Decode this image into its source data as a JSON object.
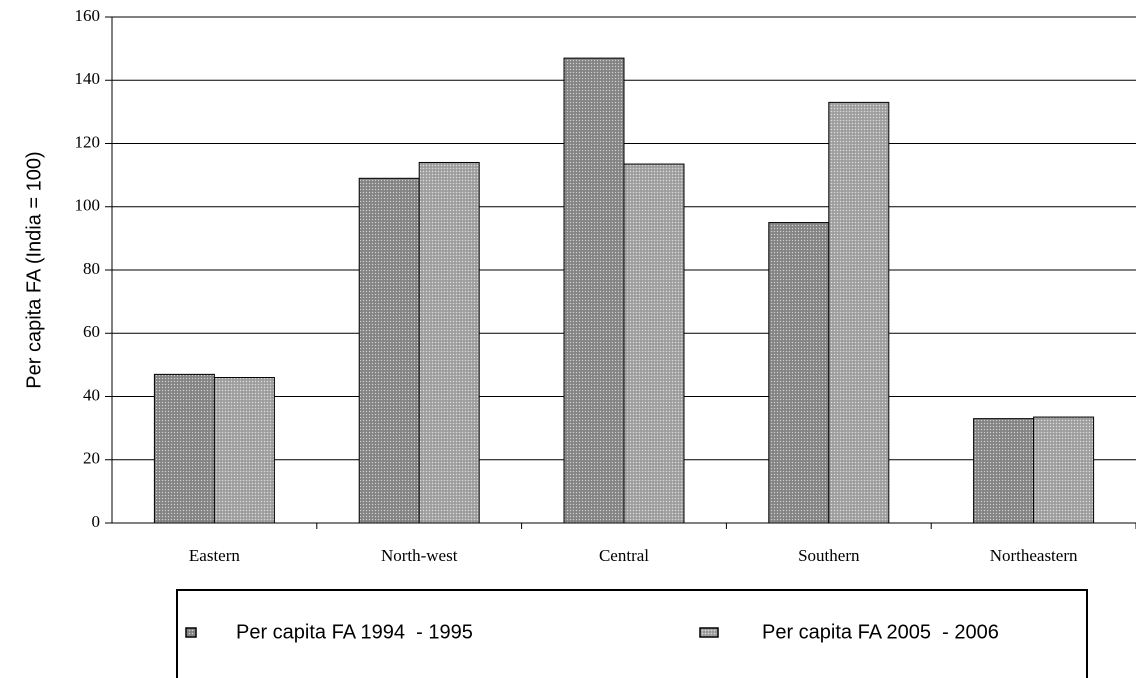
{
  "chart_data": {
    "type": "bar",
    "y_label": "Per capita FA (India = 100)",
    "categories": [
      "Eastern",
      "North-west",
      "Central",
      "Southern",
      "Northeastern"
    ],
    "series": [
      {
        "name": "Per capita FA 1994  - 1995",
        "color": "#8c8c8c",
        "values": [
          47,
          109,
          147,
          95,
          33
        ]
      },
      {
        "name": "Per capita FA 2005  - 2006",
        "color": "#a8a8a8",
        "values": [
          46,
          114,
          113.5,
          133,
          33.5
        ]
      }
    ],
    "ylim": [
      0,
      160
    ],
    "yticks": [
      0,
      20,
      40,
      60,
      80,
      100,
      120,
      140,
      160
    ],
    "grid": true
  }
}
